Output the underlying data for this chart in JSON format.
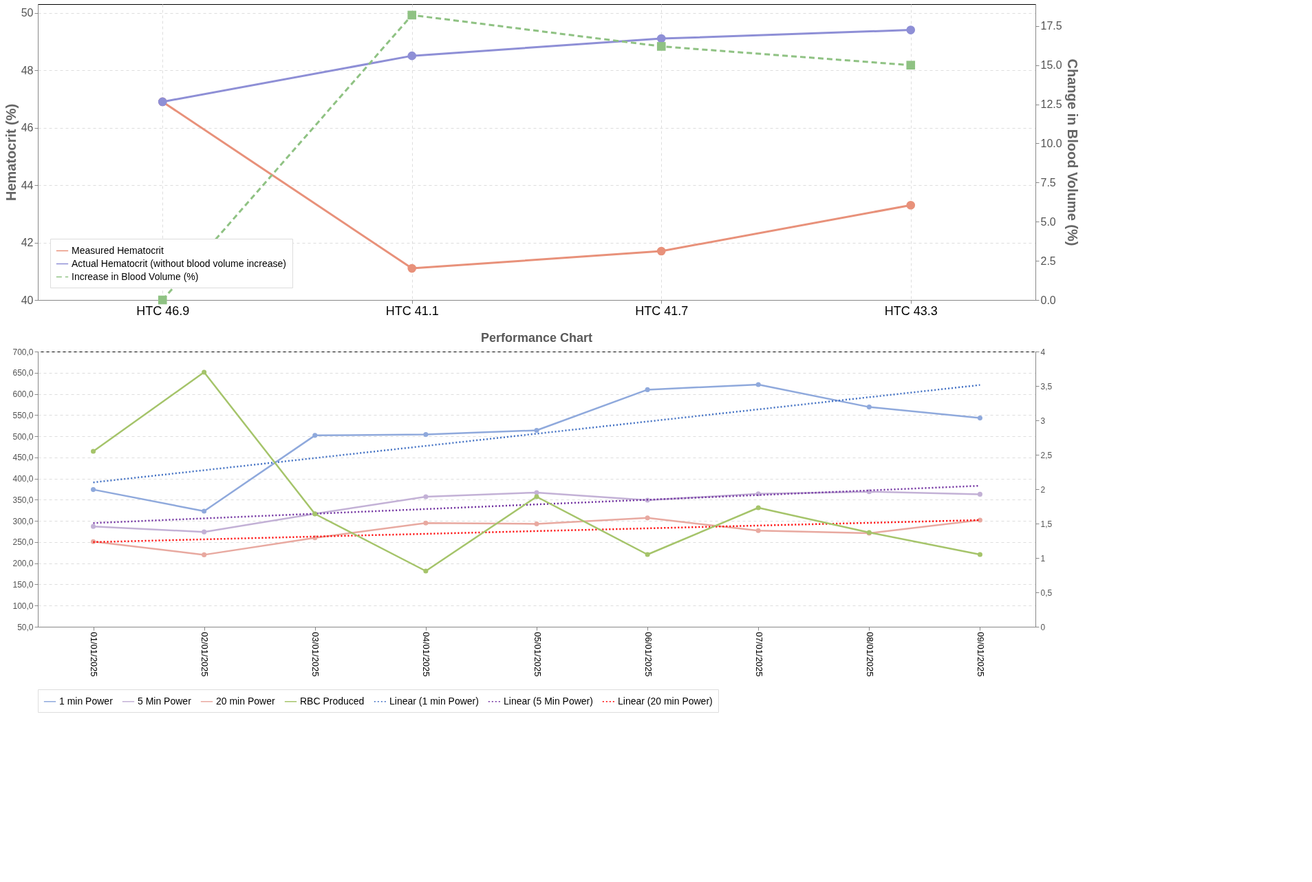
{
  "chart_data": [
    {
      "type": "line",
      "categories": [
        "HTC 46.9",
        "HTC 41.1",
        "HTC 41.7",
        "HTC 43.3"
      ],
      "ylabel": "Hematocrit (%)",
      "y2label": "Change in Blood Volume (%)",
      "ylim": [
        40,
        50.3
      ],
      "yticks": [
        40,
        42,
        44,
        46,
        48,
        50
      ],
      "y2lim": [
        0,
        18.9
      ],
      "y2ticks": [
        {
          "value": 0,
          "label": "0.0"
        },
        {
          "value": 2.5,
          "label": "2.5"
        },
        {
          "value": 5,
          "label": "5.0"
        },
        {
          "value": 7.5,
          "label": "7.5"
        },
        {
          "value": 10,
          "label": "10.0"
        },
        {
          "value": 12.5,
          "label": "12.5"
        },
        {
          "value": 15,
          "label": "15.0"
        },
        {
          "value": 17.5,
          "label": "17.5"
        }
      ],
      "grid": true,
      "legend": "bottom left",
      "series": [
        {
          "name": "Measured Hematocrit",
          "color": "#e8917a",
          "values": [
            46.9,
            41.1,
            41.7,
            43.3
          ],
          "marker": "circle",
          "line_style": "solid"
        },
        {
          "name": "Actual Hematocrit (without blood volume increase)",
          "color": "#8e8fd6",
          "values": [
            46.9,
            48.5,
            49.1,
            49.4
          ],
          "marker": "circle",
          "line_style": "solid"
        },
        {
          "name": "Increase in Blood Volume (%)",
          "color": "#8fc283",
          "values": [
            0.0,
            18.2,
            16.2,
            15.0
          ],
          "marker": "square",
          "line_style": "dashed",
          "axis": "y2"
        }
      ]
    },
    {
      "type": "line",
      "title": "Performance Chart",
      "categories": [
        "01/01/2025",
        "02/01/2025",
        "03/01/2025",
        "04/01/2025",
        "05/01/2025",
        "06/01/2025",
        "07/01/2025",
        "08/01/2025",
        "09/01/2025"
      ],
      "ylim": [
        50,
        700
      ],
      "yticks": [
        {
          "value": 50,
          "label": "50,0"
        },
        {
          "value": 100,
          "label": "100,0"
        },
        {
          "value": 150,
          "label": "150,0"
        },
        {
          "value": 200,
          "label": "200,0"
        },
        {
          "value": 250,
          "label": "250,0"
        },
        {
          "value": 300,
          "label": "300,0"
        },
        {
          "value": 350,
          "label": "350,0"
        },
        {
          "value": 400,
          "label": "400,0"
        },
        {
          "value": 450,
          "label": "450,0"
        },
        {
          "value": 500,
          "label": "500,0"
        },
        {
          "value": 550,
          "label": "550,0"
        },
        {
          "value": 600,
          "label": "600,0"
        },
        {
          "value": 650,
          "label": "650,0"
        },
        {
          "value": 700,
          "label": "700,0"
        }
      ],
      "y2lim": [
        0,
        4
      ],
      "y2ticks": [
        0,
        {
          "value": 0.5,
          "label": "0,5"
        },
        1,
        {
          "value": 1.5,
          "label": "1,5"
        },
        2,
        {
          "value": 2.5,
          "label": "2,5"
        },
        3,
        {
          "value": 3.5,
          "label": "3,5"
        },
        4
      ],
      "grid": "y",
      "legend": "bottom",
      "series": [
        {
          "name": "1 min Power",
          "color": "#8fa9dc",
          "values": [
            374,
            323,
            502,
            504,
            514,
            610,
            622,
            569,
            543
          ],
          "marker": "circle",
          "line_style": "solid"
        },
        {
          "name": "5 Min Power",
          "color": "#c3b1d6",
          "values": [
            287,
            274,
            317,
            357,
            367,
            349,
            364,
            369,
            363
          ],
          "marker": "circle",
          "line_style": "solid"
        },
        {
          "name": "20 min Power",
          "color": "#e8a9a0",
          "values": [
            251,
            220,
            260,
            295,
            293,
            307,
            277,
            271,
            302
          ],
          "marker": "circle",
          "line_style": "solid"
        },
        {
          "name": "RBC Produced",
          "color": "#a5c46a",
          "values": [
            2.55,
            3.7,
            1.64,
            0.81,
            1.89,
            1.05,
            1.73,
            1.37,
            1.05
          ],
          "marker": "circle",
          "line_style": "solid",
          "axis": "y2"
        },
        {
          "name": "Linear (1 min Power)",
          "color": "#4472c4",
          "x": [
            "01/01/2025",
            "09/01/2025"
          ],
          "values": [
            391,
            621
          ],
          "marker": "none",
          "line_style": "dotted"
        },
        {
          "name": "Linear (5 Min Power)",
          "color": "#7030a0",
          "x": [
            "01/01/2025",
            "09/01/2025"
          ],
          "values": [
            295,
            383
          ],
          "marker": "none",
          "line_style": "dotted"
        },
        {
          "name": "Linear (20 min Power)",
          "color": "#ff0000",
          "x": [
            "01/01/2025",
            "09/01/2025"
          ],
          "values": [
            250,
            302
          ],
          "marker": "none",
          "line_style": "dotted"
        }
      ]
    }
  ]
}
